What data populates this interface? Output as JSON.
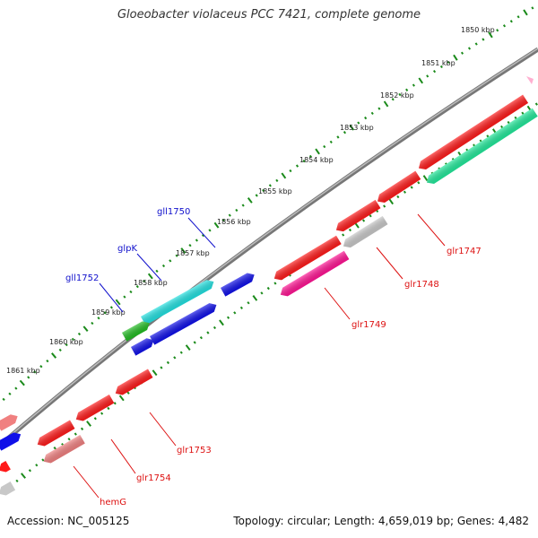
{
  "title": "Gloeobacter violaceus PCC 7421, complete genome",
  "accession": "Accession: NC_005125",
  "summary": "Topology: circular; Length: 4,659,019 bp; Genes: 4,482",
  "colors": {
    "backbone": "#888888",
    "ticks": "#1a8a1a",
    "forward_label": "#1010cc",
    "reverse_label": "#dd1111",
    "red": "#ff1a1a",
    "salmon": "#f08080",
    "magenta": "#ff1493",
    "gray": "#c8c8c8",
    "cyan": "#22e0e0",
    "blue": "#1010e8",
    "green": "#22bb22",
    "mint": "#22e89a"
  },
  "scale_labels": [
    "1850 kbp",
    "1851 kbp",
    "1852 kbp",
    "1853 kbp",
    "1854 kbp",
    "1855 kbp",
    "1856 kbp",
    "1857 kbp",
    "1858 kbp",
    "1859 kbp",
    "1860 kbp",
    "1861 kbp"
  ],
  "gene_labels": {
    "gll1750": "gll1750",
    "glpK": "glpK",
    "gll1752": "gll1752",
    "glr1747": "glr1747",
    "glr1748": "glr1748",
    "glr1749": "glr1749",
    "glr1753": "glr1753",
    "glr1754": "glr1754",
    "hemG": "hemG"
  }
}
